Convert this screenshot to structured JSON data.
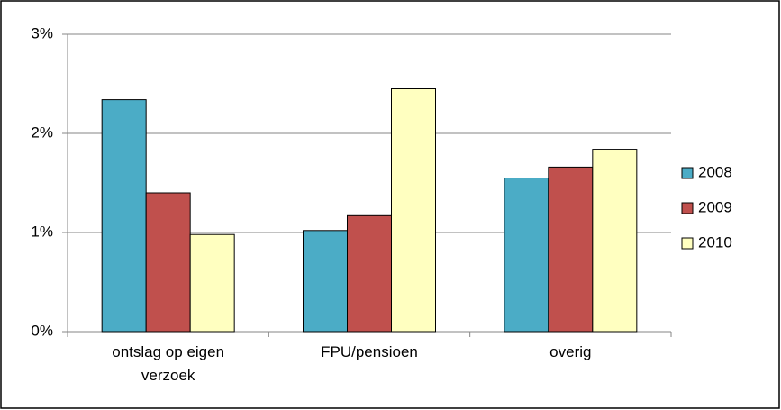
{
  "chart_data": {
    "type": "bar",
    "categories": [
      "ontslag op eigen verzoek",
      "FPU/pensioen",
      "overig"
    ],
    "series": [
      {
        "name": "2008",
        "color": "#4bacc6",
        "values": [
          2.34,
          1.02,
          1.55
        ]
      },
      {
        "name": "2009",
        "color": "#c0504d",
        "values": [
          1.4,
          1.17,
          1.66
        ]
      },
      {
        "name": "2010",
        "color": "#ffffc0",
        "values": [
          0.98,
          2.45,
          1.84
        ]
      }
    ],
    "ylim": [
      0,
      3
    ],
    "yticks": [
      {
        "value": 0,
        "label": "0%"
      },
      {
        "value": 1,
        "label": "1%"
      },
      {
        "value": 2,
        "label": "2%"
      },
      {
        "value": 3,
        "label": "3%"
      }
    ],
    "grid": true,
    "legend": "right"
  }
}
